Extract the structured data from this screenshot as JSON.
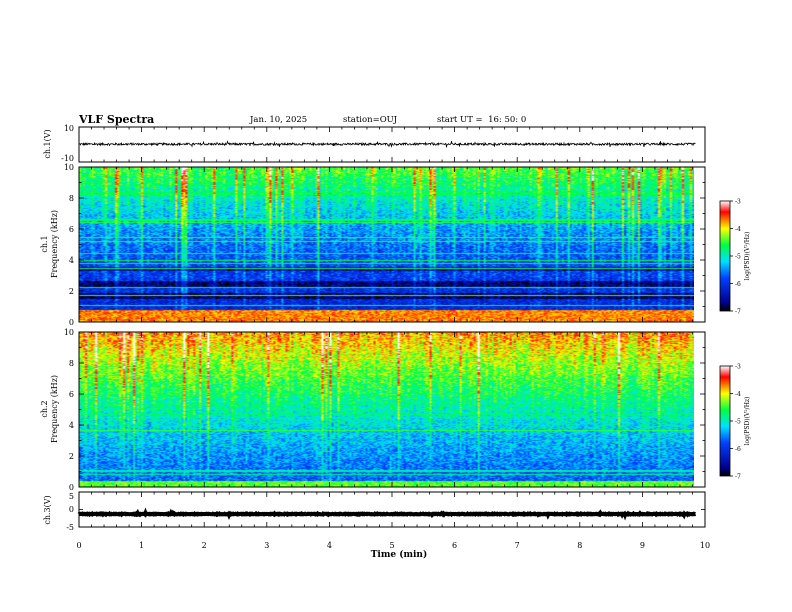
{
  "header": {
    "title": "VLF Spectra",
    "date": "Jan. 10, 2025",
    "station": "station=OUJ",
    "start": "start UT =  16: 50: 0"
  },
  "chart_data": [
    {
      "type": "line",
      "panel": "ch1-waveform",
      "ylabel": "ch.1(V)",
      "ylim": [
        -10,
        10
      ],
      "yticks": [
        "10",
        "-10"
      ],
      "xlim": [
        0,
        10
      ],
      "line_color": "#000000",
      "trace_level": 0.2,
      "trace_amplitude": 0.6
    },
    {
      "type": "heatmap",
      "panel": "ch1-spectrogram",
      "ylabel_top": "ch.1",
      "ylabel": "Frequency (kHz)",
      "ylim": [
        0,
        10
      ],
      "yticks": [
        "0",
        "2",
        "4",
        "6",
        "8",
        "10"
      ],
      "xlim": [
        0,
        9.85
      ],
      "colorbar": {
        "label": "log(PSD)(V²/Hz)",
        "range": [
          -7,
          -3
        ],
        "ticks": [
          "-3",
          "-4",
          "-5",
          "-6",
          "-7"
        ]
      },
      "features": {
        "strong_low_band_khz": [
          0,
          0.8
        ],
        "dark_bands_khz": [
          [
            1.5,
            1.9
          ],
          [
            2.3,
            2.7
          ],
          [
            3.3,
            3.6
          ]
        ],
        "background_level": -6.3,
        "top_level": -4.5
      }
    },
    {
      "type": "heatmap",
      "panel": "ch2-spectrogram",
      "ylabel_top": "ch.2",
      "ylabel": "Frequency (kHz)",
      "ylim": [
        0,
        10
      ],
      "yticks": [
        "0",
        "2",
        "4",
        "6",
        "8",
        "10"
      ],
      "xlim": [
        0,
        9.85
      ],
      "colorbar": {
        "label": "log(PSD)(V²/Hz)",
        "range": [
          -7,
          -3
        ],
        "ticks": [
          "-3",
          "-4",
          "-5",
          "-6",
          "-7"
        ]
      },
      "features": {
        "strong_low_band_khz": [
          0,
          0.4
        ],
        "background_level": -5.8,
        "top_level": -3.7
      }
    },
    {
      "type": "line",
      "panel": "ch3-waveform",
      "ylabel": "ch.3(V)",
      "ylim": [
        -5,
        5
      ],
      "yticks": [
        "5",
        "0",
        "-5"
      ],
      "xlim": [
        0,
        10
      ],
      "line_color": "#000000",
      "trace_level": -1.3,
      "trace_amplitude": 0.1
    }
  ],
  "x_axis": {
    "label": "Time (min)",
    "ticks": [
      "0",
      "1",
      "2",
      "3",
      "4",
      "5",
      "6",
      "7",
      "8",
      "9",
      "10"
    ],
    "range": [
      0,
      10
    ]
  },
  "colors": {
    "colormap": [
      "#000080",
      "#0000ff",
      "#00ffff",
      "#00ff00",
      "#ffff00",
      "#ff0000",
      "#ffffff"
    ]
  }
}
